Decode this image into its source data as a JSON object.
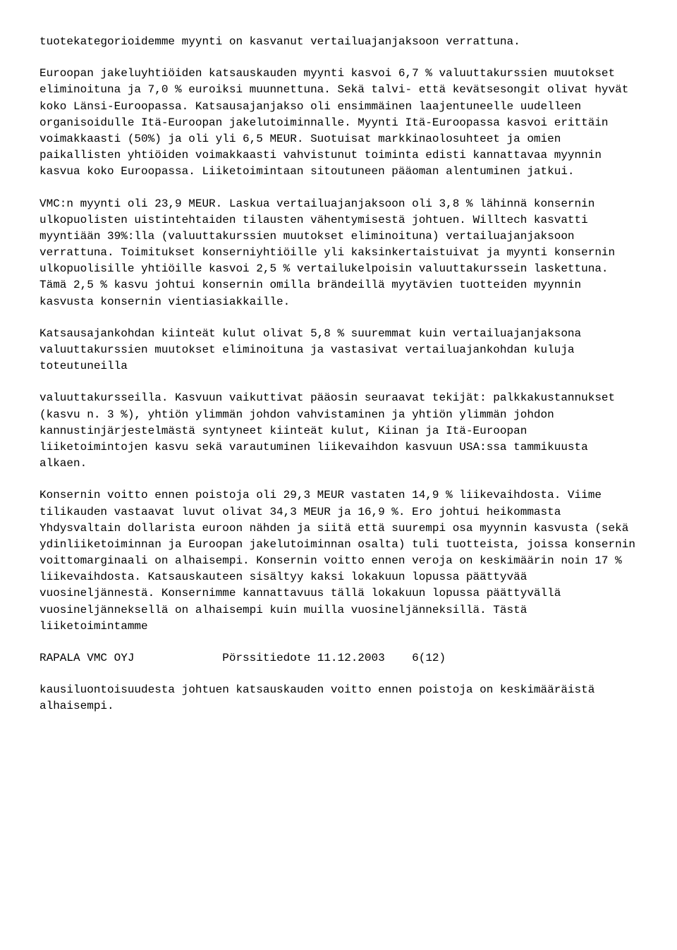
{
  "paragraphs": {
    "p1": "tuotekategorioidemme myynti on kasvanut vertailuajanjaksoon verrattuna.",
    "p2": "Euroopan jakeluyhtiöiden katsauskauden myynti kasvoi 6,7 % valuuttakurssien muutokset eliminoituna ja 7,0 % euroiksi muunnettuna. Sekä talvi- että kevätsesongit olivat hyvät koko Länsi-Euroopassa. Katsausajanjakso oli ensimmäinen laajentuneelle uudelleen organisoidulle Itä-Euroopan jakelutoiminnalle. Myynti Itä-Euroopassa kasvoi erittäin voimakkaasti (50%) ja oli yli 6,5 MEUR. Suotuisat markkinaolosuhteet ja omien paikallisten yhtiöiden voimakkaasti vahvistunut toiminta edisti kannattavaa myynnin kasvua koko Euroopassa. Liiketoimintaan sitoutuneen pääoman alentuminen jatkui.",
    "p3": "VMC:n myynti oli 23,9 MEUR. Laskua vertailuajanjaksoon oli 3,8 % lähinnä konsernin ulkopuolisten uistintehtaiden tilausten vähentymisestä johtuen. Willtech kasvatti myyntiään 39%:lla (valuuttakurssien muutokset eliminoituna) vertailuajanjaksoon verrattuna. Toimitukset konserniyhtiöille yli kaksinkertaistuivat ja myynti konsernin ulkopuolisille yhtiöille kasvoi 2,5 % vertailukelpoisin valuuttakurssein laskettuna. Tämä 2,5 % kasvu johtui konsernin omilla brändeillä myytävien tuotteiden myynnin kasvusta konsernin vientiasiakkaille.",
    "p4": "Katsausajankohdan kiinteät kulut olivat 5,8 % suuremmat kuin vertailuajanjaksona valuuttakurssien muutokset eliminoituna ja vastasivat vertailuajankohdan kuluja toteutuneilla",
    "p5": "valuuttakursseilla. Kasvuun vaikuttivat pääosin seuraavat tekijät: palkkakustannukset (kasvu n. 3 %), yhtiön ylimmän johdon vahvistaminen ja yhtiön ylimmän johdon kannustinjärjestelmästä syntyneet kiinteät kulut, Kiinan ja Itä-Euroopan liiketoimintojen kasvu sekä varautuminen liikevaihdon kasvuun USA:ssa tammikuusta alkaen.",
    "p6": "Konsernin voitto ennen poistoja oli 29,3 MEUR vastaten 14,9 % liikevaihdosta. Viime tilikauden vastaavat luvut olivat 34,3 MEUR ja 16,9 %. Ero johtui heikommasta Yhdysvaltain dollarista euroon nähden ja siitä että suurempi osa myynnin kasvusta (sekä ydinliiketoiminnan ja Euroopan jakelutoiminnan osalta) tuli tuotteista, joissa konsernin voittomarginaali on alhaisempi. Konsernin voitto ennen veroja on keskimäärin noin 17 % liikevaihdosta. Katsauskauteen sisältyy kaksi lokakuun lopussa päättyvää vuosineljännestä. Konsernimme kannattavuus tällä lokakuun lopussa päättyvällä vuosineljänneksellä on alhaisempi kuin muilla vuosineljänneksillä. Tästä liiketoimintamme",
    "p7": "kausiluontoisuudesta johtuen katsauskauden voitto ennen poistoja on keskimääräistä alhaisempi."
  },
  "footer": {
    "company": "RAPALA VMC OYJ",
    "type": "Pörssitiedote",
    "date": "11.12.2003",
    "page": "6(12)"
  }
}
